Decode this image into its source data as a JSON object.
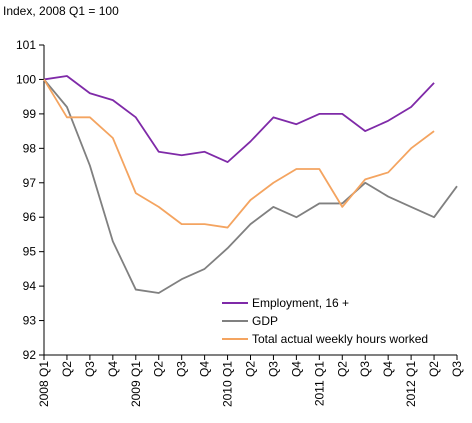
{
  "chart_data": {
    "type": "line",
    "ylabel": "Index, 2008 Q1 = 100",
    "ylim": [
      92,
      101
    ],
    "yticks": [
      92,
      93,
      94,
      95,
      96,
      97,
      98,
      99,
      100,
      101
    ],
    "grid": false,
    "legend_position": "bottom-right",
    "categories": [
      "2008 Q1",
      "Q2",
      "Q3",
      "Q4",
      "2009 Q1",
      "Q2",
      "Q3",
      "Q4",
      "2010 Q1",
      "Q2",
      "Q3",
      "Q4",
      "2011 Q1",
      "Q2",
      "Q3",
      "Q4",
      "2012 Q1",
      "Q2",
      "Q3"
    ],
    "series": [
      {
        "name": "Employment, 16 +",
        "color": "#7f2aa8",
        "values": [
          100.0,
          100.1,
          99.6,
          99.4,
          98.9,
          97.9,
          97.8,
          97.9,
          97.6,
          98.2,
          98.9,
          98.7,
          99.0,
          99.0,
          98.5,
          98.8,
          99.2,
          99.9,
          null
        ]
      },
      {
        "name": "GDP",
        "color": "#808080",
        "values": [
          100.0,
          99.2,
          97.5,
          95.3,
          93.9,
          93.8,
          94.2,
          94.5,
          95.1,
          95.8,
          96.3,
          96.0,
          96.4,
          96.4,
          97.0,
          96.6,
          96.3,
          96.0,
          96.9
        ]
      },
      {
        "name": "Total actual weekly hours worked",
        "color": "#f4a460",
        "values": [
          100.0,
          98.9,
          98.9,
          98.3,
          96.7,
          96.3,
          95.8,
          95.8,
          95.7,
          96.5,
          97.0,
          97.4,
          97.4,
          96.3,
          97.1,
          97.3,
          98.0,
          98.5,
          null
        ]
      }
    ]
  }
}
